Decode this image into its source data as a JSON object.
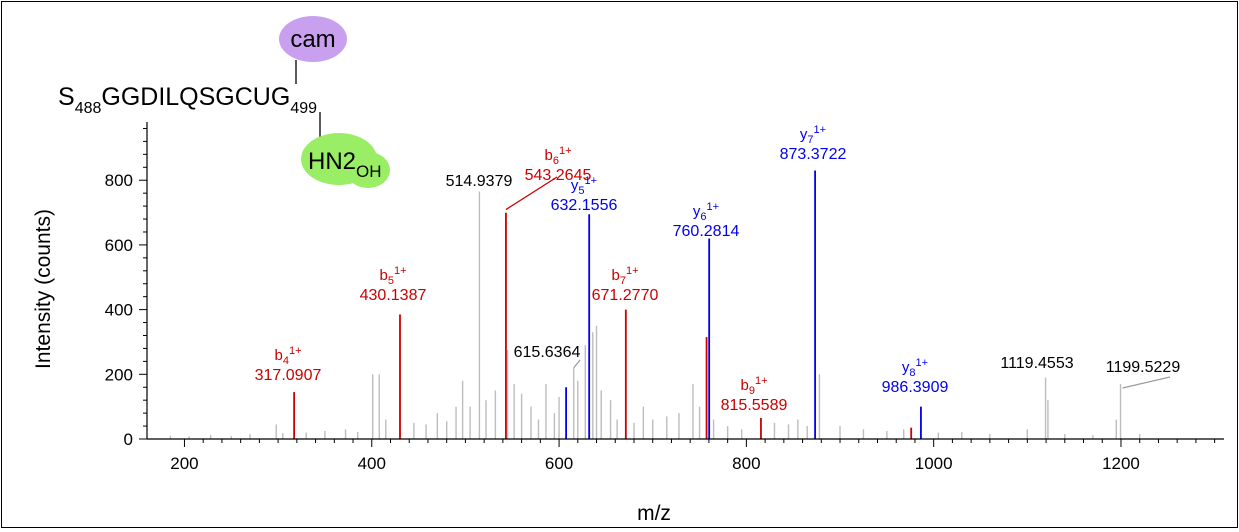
{
  "chart_data": {
    "type": "bar",
    "xlabel": "m/z",
    "ylabel": "Intensity (counts)",
    "xlim": [
      160,
      1310
    ],
    "ylim": [
      0,
      980
    ],
    "x_ticks": [
      200,
      400,
      600,
      800,
      1000,
      1200
    ],
    "y_ticks": [
      0,
      200,
      400,
      600,
      800
    ],
    "grid": false,
    "colors": {
      "b_ion": "#cc0000",
      "y_ion": "#0000ee",
      "unassigned": "#bdbdbd",
      "label": "#000000"
    },
    "peptide": {
      "start_residue": "S",
      "start_number": "488",
      "sequence": "GGDILQSGCUG",
      "end_number": "499",
      "modifications": [
        {
          "label": "cam",
          "position": "top",
          "color": "#c9a0f0"
        },
        {
          "label": "HN2",
          "subscript": "OH",
          "position": "bottom",
          "color": "#99ee66"
        }
      ]
    },
    "series": [
      {
        "name": "b",
        "color": "#cc0000",
        "peaks": [
          {
            "mz": 317.09,
            "intensity": 145,
            "ion": "b",
            "index": "4",
            "charge": "1+",
            "mz_label": "317.0907"
          },
          {
            "mz": 430.14,
            "intensity": 385,
            "ion": "b",
            "index": "5",
            "charge": "1+",
            "mz_label": "430.1387"
          },
          {
            "mz": 543.26,
            "intensity": 700,
            "ion": "b",
            "index": "6",
            "charge": "1+",
            "mz_label": "543.2645"
          },
          {
            "mz": 671.28,
            "intensity": 400,
            "ion": "b",
            "index": "7",
            "charge": "1+",
            "mz_label": "671.2770"
          },
          {
            "mz": 815.56,
            "intensity": 65,
            "ion": "b",
            "index": "9",
            "charge": "1+",
            "mz_label": "815.5589"
          },
          {
            "mz": 757.5,
            "intensity": 315
          },
          {
            "mz": 976.0,
            "intensity": 35
          }
        ]
      },
      {
        "name": "y",
        "color": "#0000ee",
        "peaks": [
          {
            "mz": 632.16,
            "intensity": 695,
            "ion": "y",
            "index": "5",
            "charge": "1+",
            "mz_label": "632.1556"
          },
          {
            "mz": 760.28,
            "intensity": 620,
            "ion": "y",
            "index": "6",
            "charge": "1+",
            "mz_label": "760.2814"
          },
          {
            "mz": 873.37,
            "intensity": 830,
            "ion": "y",
            "index": "7",
            "charge": "1+",
            "mz_label": "873.3722"
          },
          {
            "mz": 986.39,
            "intensity": 100,
            "ion": "y",
            "index": "8",
            "charge": "1+",
            "mz_label": "986.3909"
          },
          {
            "mz": 607.5,
            "intensity": 160
          }
        ]
      },
      {
        "name": "unassigned",
        "color": "#bdbdbd",
        "peaks": [
          {
            "mz": 514.94,
            "intensity": 765,
            "mz_label": "514.9379"
          },
          {
            "mz": 615.64,
            "intensity": 220,
            "mz_label": "615.6364"
          },
          {
            "mz": 1119.46,
            "intensity": 190,
            "mz_label": "1119.4553"
          },
          {
            "mz": 1199.52,
            "intensity": 170,
            "mz_label": "1199.5229"
          },
          {
            "mz": 185,
            "intensity": 10
          },
          {
            "mz": 205,
            "intensity": 8
          },
          {
            "mz": 228,
            "intensity": 12
          },
          {
            "mz": 250,
            "intensity": 9
          },
          {
            "mz": 270,
            "intensity": 15
          },
          {
            "mz": 298,
            "intensity": 45
          },
          {
            "mz": 305,
            "intensity": 18
          },
          {
            "mz": 330,
            "intensity": 20
          },
          {
            "mz": 350,
            "intensity": 25
          },
          {
            "mz": 372,
            "intensity": 30
          },
          {
            "mz": 385,
            "intensity": 22
          },
          {
            "mz": 401,
            "intensity": 200
          },
          {
            "mz": 408,
            "intensity": 200
          },
          {
            "mz": 415,
            "intensity": 60
          },
          {
            "mz": 445,
            "intensity": 50
          },
          {
            "mz": 458,
            "intensity": 45
          },
          {
            "mz": 470,
            "intensity": 80
          },
          {
            "mz": 480,
            "intensity": 55
          },
          {
            "mz": 490,
            "intensity": 100
          },
          {
            "mz": 497,
            "intensity": 180
          },
          {
            "mz": 505,
            "intensity": 100
          },
          {
            "mz": 522,
            "intensity": 120
          },
          {
            "mz": 532,
            "intensity": 150
          },
          {
            "mz": 545,
            "intensity": 275
          },
          {
            "mz": 552,
            "intensity": 170
          },
          {
            "mz": 560,
            "intensity": 140
          },
          {
            "mz": 570,
            "intensity": 100
          },
          {
            "mz": 578,
            "intensity": 60
          },
          {
            "mz": 586,
            "intensity": 170
          },
          {
            "mz": 595,
            "intensity": 80
          },
          {
            "mz": 600,
            "intensity": 130
          },
          {
            "mz": 620,
            "intensity": 180
          },
          {
            "mz": 628,
            "intensity": 290
          },
          {
            "mz": 636,
            "intensity": 330
          },
          {
            "mz": 640,
            "intensity": 350
          },
          {
            "mz": 645,
            "intensity": 150
          },
          {
            "mz": 655,
            "intensity": 120
          },
          {
            "mz": 662,
            "intensity": 60
          },
          {
            "mz": 680,
            "intensity": 50
          },
          {
            "mz": 690,
            "intensity": 100
          },
          {
            "mz": 700,
            "intensity": 60
          },
          {
            "mz": 715,
            "intensity": 70
          },
          {
            "mz": 728,
            "intensity": 80
          },
          {
            "mz": 743,
            "intensity": 170
          },
          {
            "mz": 750,
            "intensity": 100
          },
          {
            "mz": 765,
            "intensity": 60
          },
          {
            "mz": 780,
            "intensity": 40
          },
          {
            "mz": 795,
            "intensity": 30
          },
          {
            "mz": 830,
            "intensity": 50
          },
          {
            "mz": 845,
            "intensity": 45
          },
          {
            "mz": 855,
            "intensity": 60
          },
          {
            "mz": 865,
            "intensity": 40
          },
          {
            "mz": 878,
            "intensity": 200
          },
          {
            "mz": 900,
            "intensity": 40
          },
          {
            "mz": 925,
            "intensity": 30
          },
          {
            "mz": 950,
            "intensity": 25
          },
          {
            "mz": 968,
            "intensity": 30
          },
          {
            "mz": 1005,
            "intensity": 20
          },
          {
            "mz": 1030,
            "intensity": 22
          },
          {
            "mz": 1060,
            "intensity": 15
          },
          {
            "mz": 1100,
            "intensity": 30
          },
          {
            "mz": 1122,
            "intensity": 120
          },
          {
            "mz": 1140,
            "intensity": 15
          },
          {
            "mz": 1170,
            "intensity": 12
          },
          {
            "mz": 1195,
            "intensity": 60
          },
          {
            "mz": 1220,
            "intensity": 15
          }
        ]
      }
    ]
  }
}
